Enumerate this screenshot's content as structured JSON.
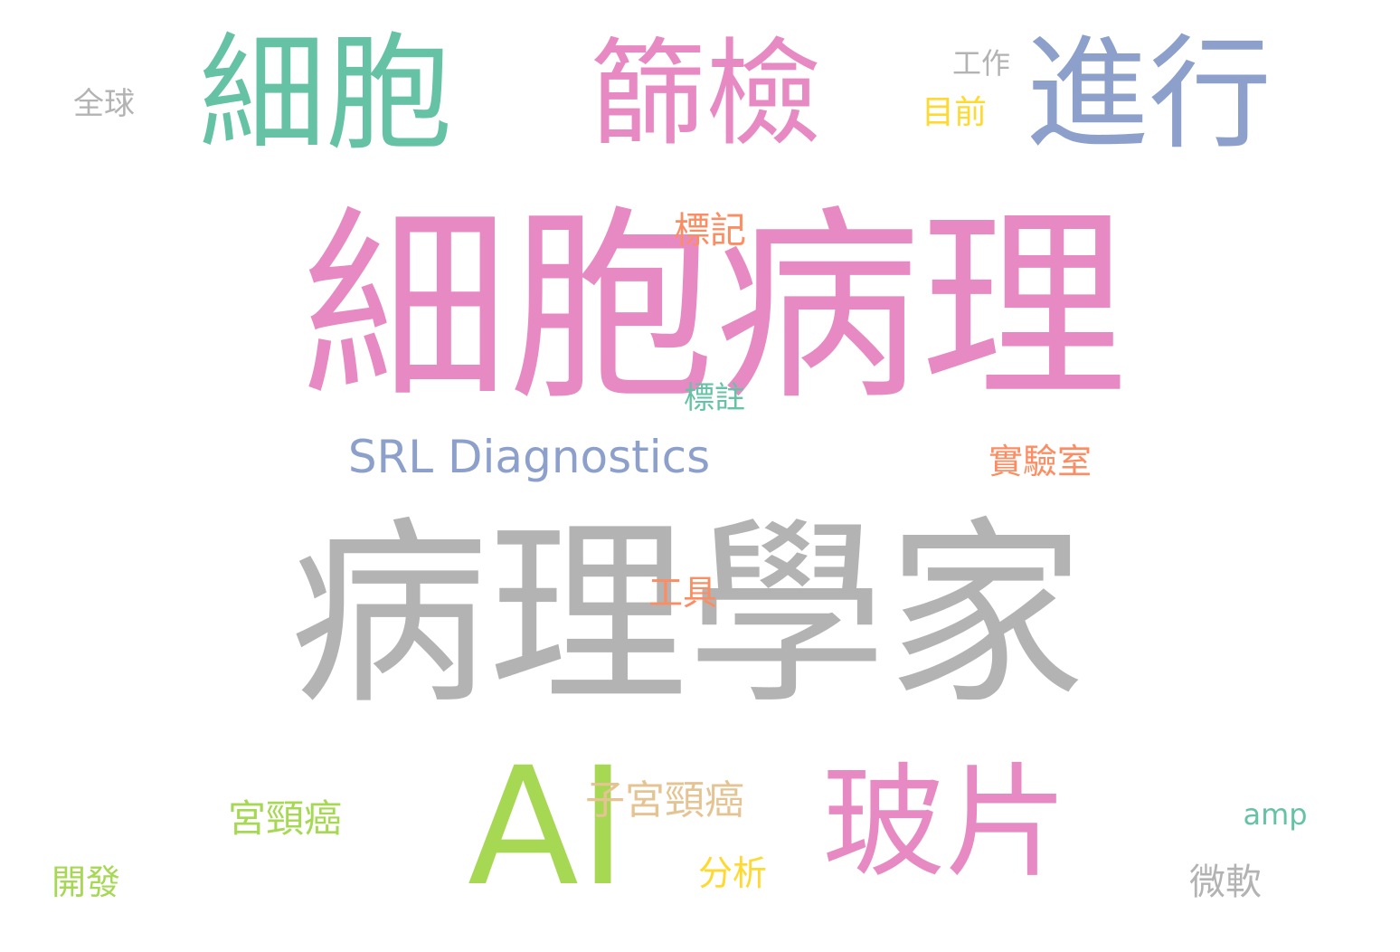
{
  "palette": {
    "pink": "#e78ac3",
    "gray": "#b3b3b3",
    "green": "#a6d854",
    "teal": "#66c2a5",
    "blue": "#8da0cb",
    "orange": "#fc8d62",
    "yellow": "#ffd92f",
    "tan": "#e5c494"
  },
  "words": [
    {
      "text": "細胞病理",
      "color": "pink",
      "weight": 100
    },
    {
      "text": "病理學家",
      "color": "gray",
      "weight": 92
    },
    {
      "text": "AI",
      "color": "green",
      "weight": 80
    },
    {
      "text": "細胞",
      "color": "teal",
      "weight": 58
    },
    {
      "text": "篩檢",
      "color": "pink",
      "weight": 56
    },
    {
      "text": "進行",
      "color": "blue",
      "weight": 56
    },
    {
      "text": "玻片",
      "color": "pink",
      "weight": 54
    },
    {
      "text": "SRL Diagnostics",
      "color": "blue",
      "weight": 22
    },
    {
      "text": "子宮頸癌",
      "color": "tan",
      "weight": 18
    },
    {
      "text": "宮頸癌",
      "color": "green",
      "weight": 18
    },
    {
      "text": "實驗室",
      "color": "orange",
      "weight": 17
    },
    {
      "text": "微軟",
      "color": "gray",
      "weight": 17
    },
    {
      "text": "分析",
      "color": "yellow",
      "weight": 16
    },
    {
      "text": "開發",
      "color": "green",
      "weight": 15
    },
    {
      "text": "全球",
      "color": "gray",
      "weight": 14
    },
    {
      "text": "工作",
      "color": "gray",
      "weight": 14
    },
    {
      "text": "目前",
      "color": "yellow",
      "weight": 14
    },
    {
      "text": "標記",
      "color": "orange",
      "weight": 15
    },
    {
      "text": "標註",
      "color": "teal",
      "weight": 13
    },
    {
      "text": "工具",
      "color": "orange",
      "weight": 14
    },
    {
      "text": "amp",
      "color": "teal",
      "weight": 13
    }
  ]
}
